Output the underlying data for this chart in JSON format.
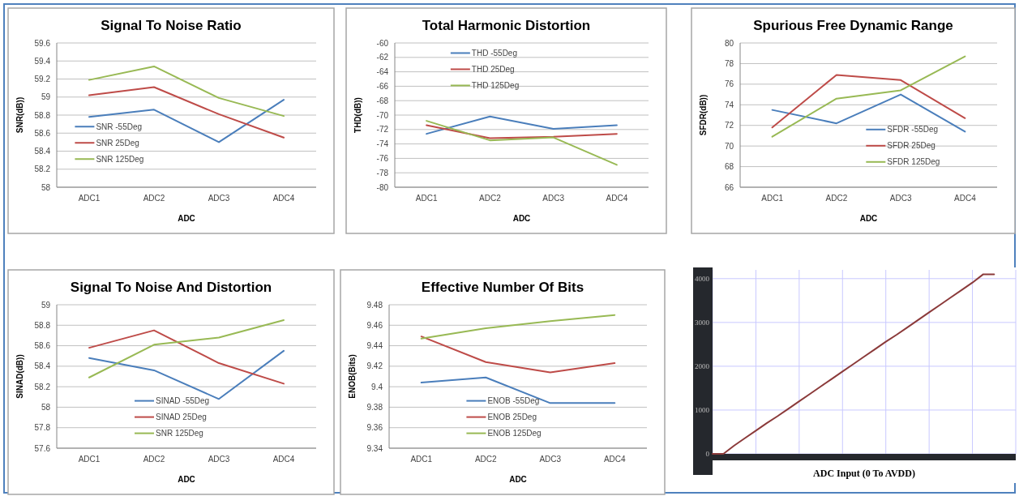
{
  "chart_data": [
    {
      "type": "line",
      "title": "Signal To Noise Ratio",
      "xlabel": "ADC",
      "ylabel": "SNR(dB))",
      "categories": [
        "ADC1",
        "ADC2",
        "ADC3",
        "ADC4"
      ],
      "ylim": [
        58,
        59.6
      ],
      "yticks": [
        58,
        58.2,
        58.4,
        58.6,
        58.8,
        59,
        59.2,
        59.4,
        59.6
      ],
      "grid": "y",
      "legend": "left",
      "series": [
        {
          "name": "SNR -55Deg",
          "color": "#4a7ebb",
          "values": [
            58.78,
            58.86,
            58.5,
            58.97
          ]
        },
        {
          "name": "SNR 25Deg",
          "color": "#be4b48",
          "values": [
            59.02,
            59.11,
            58.81,
            58.55
          ]
        },
        {
          "name": "SNR 125Deg",
          "color": "#98b954",
          "values": [
            59.19,
            59.34,
            58.99,
            58.79
          ]
        }
      ]
    },
    {
      "type": "line",
      "title": "Total Harmonic Distortion",
      "xlabel": "ADC",
      "ylabel": "THD(dB))",
      "categories": [
        "ADC1",
        "ADC2",
        "ADC3",
        "ADC4"
      ],
      "ylim": [
        -80,
        -60
      ],
      "yticks": [
        -80,
        -78,
        -76,
        -74,
        -72,
        -70,
        -68,
        -66,
        -64,
        -62,
        -60
      ],
      "grid": "y",
      "legend": "top",
      "series": [
        {
          "name": "THD -55Deg",
          "color": "#4a7ebb",
          "values": [
            -72.6,
            -70.2,
            -71.9,
            -71.4
          ]
        },
        {
          "name": "THD 25Deg",
          "color": "#be4b48",
          "values": [
            -71.4,
            -73.2,
            -73.0,
            -72.6
          ]
        },
        {
          "name": "THD 125Deg",
          "color": "#98b954",
          "values": [
            -70.8,
            -73.5,
            -73.1,
            -76.9
          ]
        }
      ]
    },
    {
      "type": "line",
      "title": "Spurious Free Dynamic Range",
      "xlabel": "ADC",
      "ylabel": "SFDR(dB))",
      "categories": [
        "ADC1",
        "ADC2",
        "ADC3",
        "ADC4"
      ],
      "ylim": [
        66,
        80
      ],
      "yticks": [
        66,
        68,
        70,
        72,
        74,
        76,
        78,
        80
      ],
      "grid": "y",
      "legend": "bottom right",
      "series": [
        {
          "name": "SFDR -55Deg",
          "color": "#4a7ebb",
          "values": [
            73.5,
            72.2,
            75.0,
            71.4
          ]
        },
        {
          "name": "SFDR 25Deg",
          "color": "#be4b48",
          "values": [
            71.8,
            76.9,
            76.4,
            72.7
          ]
        },
        {
          "name": "SFDR 125Deg",
          "color": "#98b954",
          "values": [
            70.9,
            74.6,
            75.4,
            78.7
          ]
        }
      ]
    },
    {
      "type": "line",
      "title": "Signal To Noise And Distortion",
      "xlabel": "ADC",
      "ylabel": "SINAD(dB))",
      "categories": [
        "ADC1",
        "ADC2",
        "ADC3",
        "ADC4"
      ],
      "ylim": [
        57.6,
        59
      ],
      "yticks": [
        57.6,
        57.8,
        58,
        58.2,
        58.4,
        58.6,
        58.8,
        59
      ],
      "grid": "y",
      "legend": "bottom",
      "series": [
        {
          "name": "SINAD -55Deg",
          "color": "#4a7ebb",
          "values": [
            58.48,
            58.36,
            58.08,
            58.55
          ]
        },
        {
          "name": "SINAD 25Deg",
          "color": "#be4b48",
          "values": [
            58.58,
            58.75,
            58.43,
            58.23
          ]
        },
        {
          "name": "SNR 125Deg",
          "color": "#98b954",
          "values": [
            58.29,
            58.61,
            58.68,
            58.85
          ]
        }
      ]
    },
    {
      "type": "line",
      "title": "Effective Number Of Bits",
      "xlabel": "ADC",
      "ylabel": "ENOB(Bits)",
      "categories": [
        "ADC1",
        "ADC2",
        "ADC3",
        "ADC4"
      ],
      "ylim": [
        9.34,
        9.48
      ],
      "yticks": [
        9.34,
        9.36,
        9.38,
        9.4,
        9.42,
        9.44,
        9.46,
        9.48
      ],
      "grid": "y",
      "legend": "bottom",
      "series": [
        {
          "name": "ENOB -55Deg",
          "color": "#4a7ebb",
          "values": [
            9.404,
            9.409,
            9.384,
            9.384
          ]
        },
        {
          "name": "ENOB 25Deg",
          "color": "#be4b48",
          "values": [
            9.449,
            9.424,
            9.414,
            9.423
          ]
        },
        {
          "name": "ENOB 125Deg",
          "color": "#98b954",
          "values": [
            9.447,
            9.457,
            9.464,
            9.47
          ]
        }
      ]
    },
    {
      "type": "line",
      "xlabel": "ADC Input (0 To AVDD)",
      "categories": [
        null,
        null,
        null,
        null,
        null,
        null,
        null,
        null,
        null,
        null,
        null,
        null,
        null,
        null,
        null,
        null,
        null,
        null,
        null,
        null,
        null,
        null,
        null,
        null,
        null,
        null,
        null
      ],
      "ylim": [
        0,
        4200
      ],
      "yticks": [
        0,
        1000,
        2000,
        3000,
        4000
      ],
      "grid": true,
      "series": [
        {
          "color": "#8b3a3a",
          "values": [
            0,
            0,
            190,
            360,
            530,
            700,
            860,
            1030,
            1200,
            1370,
            1540,
            1710,
            1880,
            2050,
            2220,
            2390,
            2560,
            2720,
            2890,
            3060,
            3230,
            3400,
            3570,
            3740,
            3910,
            4100,
            4100
          ]
        }
      ]
    }
  ]
}
